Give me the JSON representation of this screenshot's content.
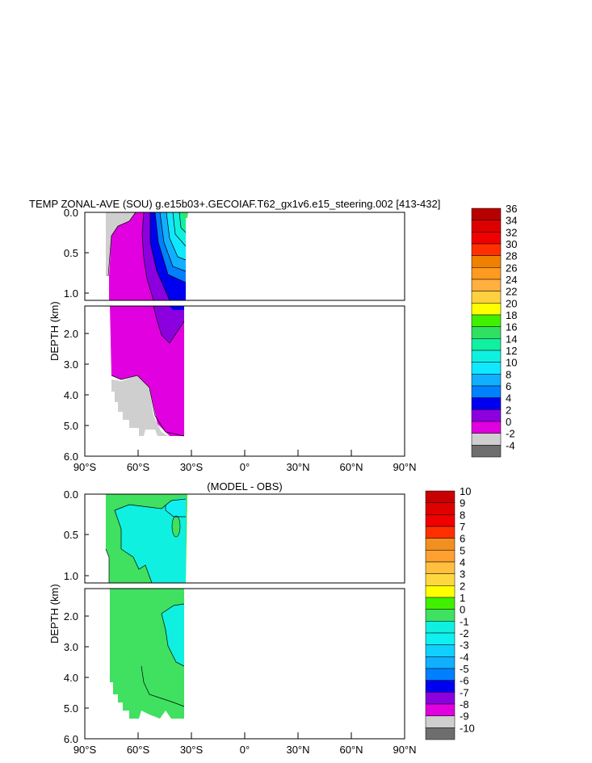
{
  "colors": {
    "gray_dark": "#6e6e6e",
    "gray_light": "#cfcfcf",
    "magenta": "#e000e0",
    "violet": "#8c00e0",
    "blue": "#0000f0",
    "green": "#40e060",
    "cyan": "#10f0e0"
  },
  "chart_data": [
    {
      "type": "heatmap",
      "title": "TEMP ZONAL-AVE (SOU) g.e15b03+.GECOIAF.T62_gx1v6.e15_steering.002 [413-432]",
      "ylabel": "DEPTH (km)",
      "xlabel": "",
      "x_ticks": [
        "90°S",
        "60°S",
        "30°S",
        "0°",
        "30°N",
        "60°N",
        "90°N"
      ],
      "y_ticks_upper": [
        "0.0",
        "0.5",
        "1.0"
      ],
      "y_ticks_lower": [
        "2.0",
        "3.0",
        "4.0",
        "5.0",
        "6.0"
      ],
      "xlim": [
        -90,
        90
      ],
      "ylim_km": [
        6.0,
        0.0
      ],
      "colorbar": {
        "labels": [
          "36",
          "34",
          "32",
          "30",
          "28",
          "26",
          "24",
          "22",
          "20",
          "18",
          "16",
          "14",
          "12",
          "10",
          "8",
          "6",
          "4",
          "2",
          "0",
          "-2",
          "-4"
        ],
        "colors": [
          "#b80000",
          "#dc0000",
          "#f00000",
          "#ff3000",
          "#f08000",
          "#ff9a20",
          "#ffb040",
          "#ffd040",
          "#ffff00",
          "#40f000",
          "#30e060",
          "#10f0a0",
          "#10f0e0",
          "#10e8ff",
          "#10b0ff",
          "#0080ff",
          "#0000f0",
          "#8c00e0",
          "#e000e0",
          "#cfcfcf",
          "#6e6e6e"
        ]
      }
    },
    {
      "type": "heatmap",
      "title": "(MODEL - OBS)",
      "ylabel": "DEPTH (km)",
      "xlabel": "",
      "x_ticks": [
        "90°S",
        "60°S",
        "30°S",
        "0°",
        "30°N",
        "60°N",
        "90°N"
      ],
      "y_ticks_upper": [
        "0.0",
        "0.5",
        "1.0"
      ],
      "y_ticks_lower": [
        "2.0",
        "3.0",
        "4.0",
        "5.0",
        "6.0"
      ],
      "xlim": [
        -90,
        90
      ],
      "ylim_km": [
        6.0,
        0.0
      ],
      "colorbar": {
        "labels": [
          "10",
          "9",
          "8",
          "7",
          "6",
          "5",
          "4",
          "3",
          "2",
          "1",
          "0",
          "-1",
          "-2",
          "-3",
          "-4",
          "-5",
          "-6",
          "-7",
          "-8",
          "-9",
          "-10"
        ],
        "colors": [
          "#c80000",
          "#e00000",
          "#f00000",
          "#ff3000",
          "#f09020",
          "#ffa030",
          "#ffc040",
          "#ffd840",
          "#ffff00",
          "#40f000",
          "#40e060",
          "#10f0e0",
          "#10f0f0",
          "#10d0ff",
          "#10b0ff",
          "#0080ff",
          "#0000f0",
          "#8c00e0",
          "#e000e0",
          "#cfcfcf",
          "#6e6e6e"
        ]
      }
    }
  ]
}
